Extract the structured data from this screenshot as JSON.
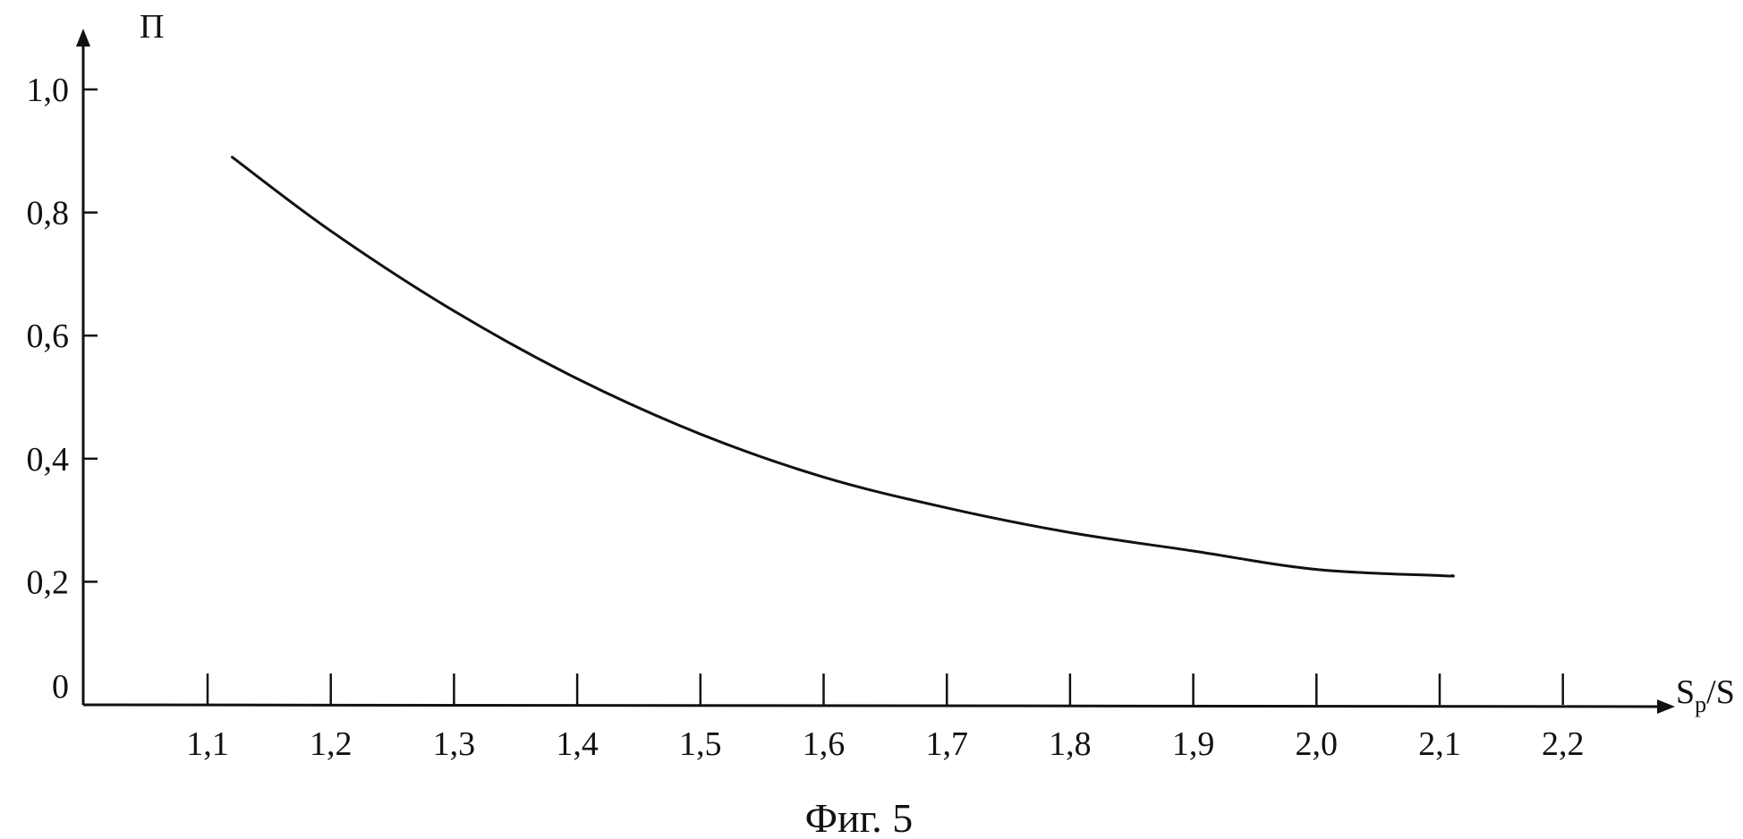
{
  "chart_data": {
    "type": "line",
    "title": "",
    "caption": "Фиг. 5",
    "ylabel": "П",
    "xlabel_main": "S",
    "xlabel_subscript": "р",
    "xlabel_suffix": "/S",
    "x_ticks": [
      "1,1",
      "1,2",
      "1,3",
      "1,4",
      "1,5",
      "1,6",
      "1,7",
      "1,8",
      "1,9",
      "2,0",
      "2,1",
      "2,2"
    ],
    "y_ticks": [
      "0",
      "0,2",
      "0,4",
      "0,6",
      "0,8",
      "1,0"
    ],
    "xlim": [
      1.0,
      2.25
    ],
    "ylim": [
      0,
      1.1
    ],
    "grid": false,
    "series": [
      {
        "name": "",
        "x": [
          1.12,
          1.2,
          1.3,
          1.4,
          1.5,
          1.6,
          1.7,
          1.8,
          1.9,
          2.0,
          2.1,
          2.11
        ],
        "y": [
          0.89,
          0.77,
          0.64,
          0.53,
          0.44,
          0.37,
          0.32,
          0.28,
          0.25,
          0.22,
          0.21,
          0.21
        ]
      }
    ]
  }
}
